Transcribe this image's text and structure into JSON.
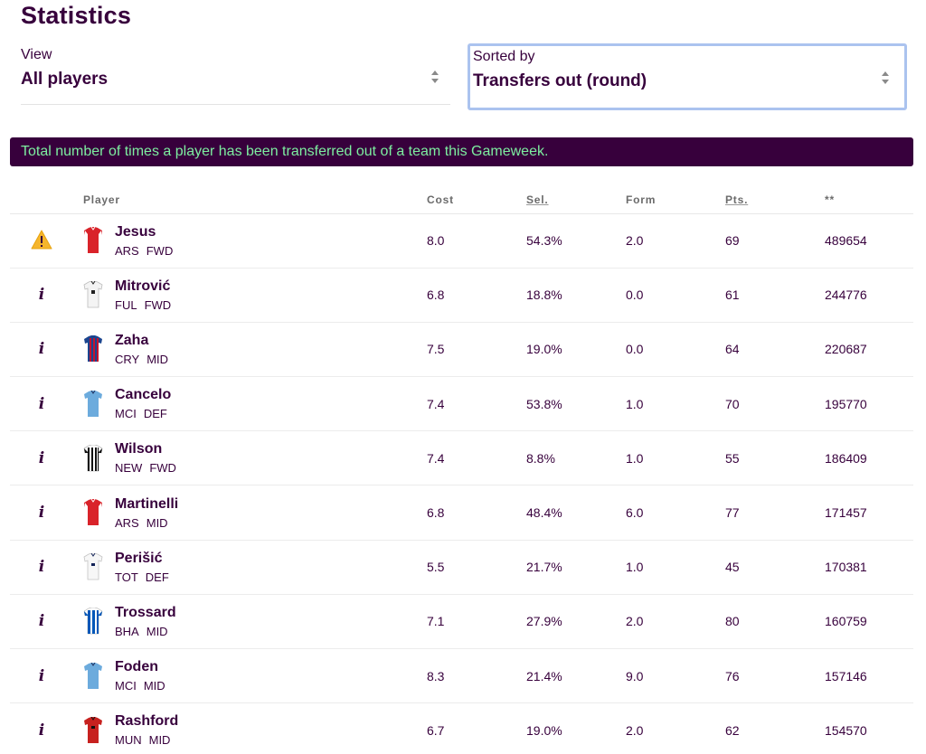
{
  "page": {
    "title": "Statistics"
  },
  "view": {
    "label": "View",
    "value": "All players"
  },
  "sort": {
    "label": "Sorted by",
    "value": "Transfers out (round)"
  },
  "banner": {
    "text": "Total number of times a player has been transferred out of a team this Gameweek."
  },
  "table": {
    "headers": {
      "player": "Player",
      "cost": "Cost",
      "sel": "Sel.",
      "form": "Form",
      "pts": "Pts.",
      "last": "**"
    },
    "rows": [
      {
        "status": "warning-icon",
        "name": "Jesus",
        "team": "ARS",
        "pos": "FWD",
        "cost": "8.0",
        "sel": "54.3%",
        "form": "2.0",
        "pts": "69",
        "stat": "489654",
        "kit": "ars"
      },
      {
        "status": "info-icon",
        "name": "Mitrović",
        "team": "FUL",
        "pos": "FWD",
        "cost": "6.8",
        "sel": "18.8%",
        "form": "0.0",
        "pts": "61",
        "stat": "244776",
        "kit": "ful"
      },
      {
        "status": "info-icon",
        "name": "Zaha",
        "team": "CRY",
        "pos": "MID",
        "cost": "7.5",
        "sel": "19.0%",
        "form": "0.0",
        "pts": "64",
        "stat": "220687",
        "kit": "cry"
      },
      {
        "status": "info-icon",
        "name": "Cancelo",
        "team": "MCI",
        "pos": "DEF",
        "cost": "7.4",
        "sel": "53.8%",
        "form": "1.0",
        "pts": "70",
        "stat": "195770",
        "kit": "mci"
      },
      {
        "status": "info-icon",
        "name": "Wilson",
        "team": "NEW",
        "pos": "FWD",
        "cost": "7.4",
        "sel": "8.8%",
        "form": "1.0",
        "pts": "55",
        "stat": "186409",
        "kit": "new"
      },
      {
        "status": "info-icon",
        "name": "Martinelli",
        "team": "ARS",
        "pos": "MID",
        "cost": "6.8",
        "sel": "48.4%",
        "form": "6.0",
        "pts": "77",
        "stat": "171457",
        "kit": "ars"
      },
      {
        "status": "info-icon",
        "name": "Perišić",
        "team": "TOT",
        "pos": "DEF",
        "cost": "5.5",
        "sel": "21.7%",
        "form": "1.0",
        "pts": "45",
        "stat": "170381",
        "kit": "tot"
      },
      {
        "status": "info-icon",
        "name": "Trossard",
        "team": "BHA",
        "pos": "MID",
        "cost": "7.1",
        "sel": "27.9%",
        "form": "2.0",
        "pts": "80",
        "stat": "160759",
        "kit": "bha"
      },
      {
        "status": "info-icon",
        "name": "Foden",
        "team": "MCI",
        "pos": "MID",
        "cost": "8.3",
        "sel": "21.4%",
        "form": "9.0",
        "pts": "76",
        "stat": "157146",
        "kit": "mci"
      },
      {
        "status": "info-icon",
        "name": "Rashford",
        "team": "MUN",
        "pos": "MID",
        "cost": "6.7",
        "sel": "19.0%",
        "form": "2.0",
        "pts": "62",
        "stat": "154570",
        "kit": "mun"
      }
    ]
  },
  "colors": {
    "primary": "#37003c",
    "banner_text": "#7defa0",
    "warning": "#f5b52c",
    "focus_border": "#abc3ef"
  }
}
